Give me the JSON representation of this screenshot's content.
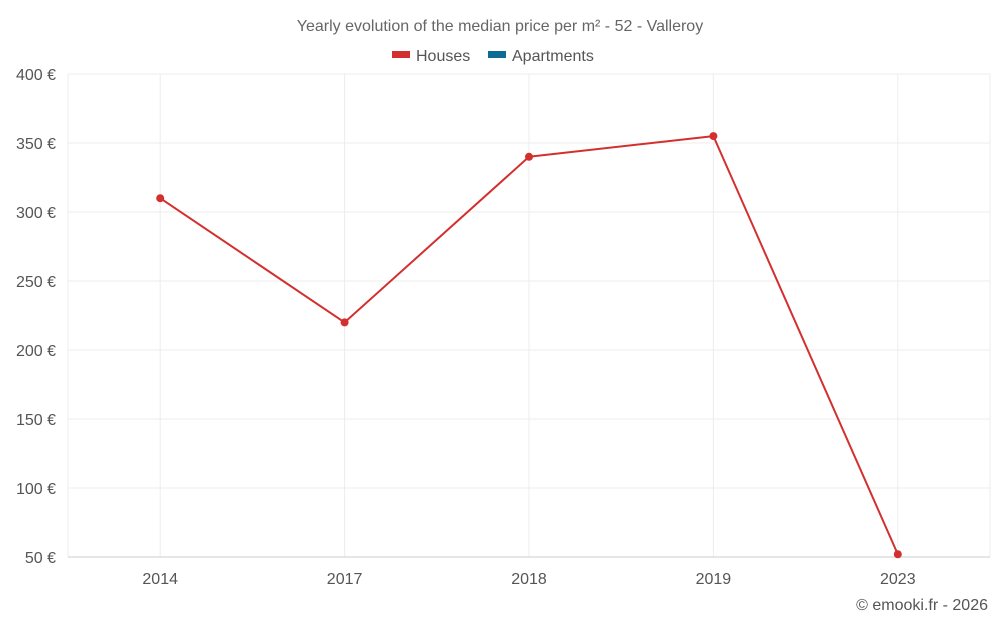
{
  "chart_data": {
    "type": "line",
    "title": "Yearly evolution of the median price per m² - 52 - Valleroy",
    "categories": [
      "2014",
      "2017",
      "2018",
      "2019",
      "2023"
    ],
    "series": [
      {
        "name": "Houses",
        "color": "#d32f2f",
        "values": [
          310,
          220,
          340,
          355,
          52
        ]
      },
      {
        "name": "Apartments",
        "color": "#0d6b96",
        "values": [
          null,
          null,
          null,
          null,
          null
        ]
      }
    ],
    "y_ticks": [
      50,
      100,
      150,
      200,
      250,
      300,
      350,
      400
    ],
    "y_tick_suffix": " €",
    "ylim": [
      50,
      400
    ],
    "xlabel": "",
    "ylabel": "",
    "grid": true,
    "legend_position": "top-center"
  },
  "credit": "© emooki.fr - 2026"
}
